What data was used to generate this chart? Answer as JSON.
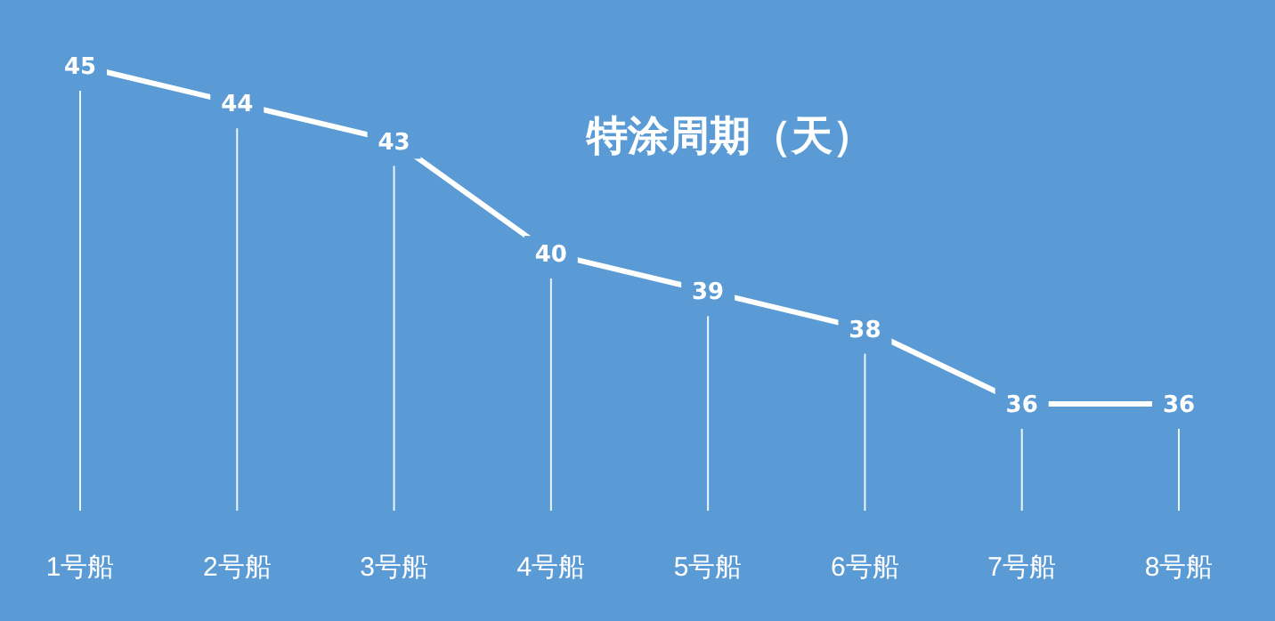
{
  "chart_data": {
    "type": "line",
    "title": "特涂周期（天）",
    "categories": [
      "1号船",
      "2号船",
      "3号船",
      "4号船",
      "5号船",
      "6号船",
      "7号船",
      "8号船"
    ],
    "series": [
      {
        "color": "#ffffff",
        "values": [
          45,
          44,
          43,
          40,
          39,
          38,
          36,
          36
        ]
      }
    ],
    "tick_labels": "x",
    "data_labels": true,
    "line_style": "solid",
    "grid": "x"
  }
}
